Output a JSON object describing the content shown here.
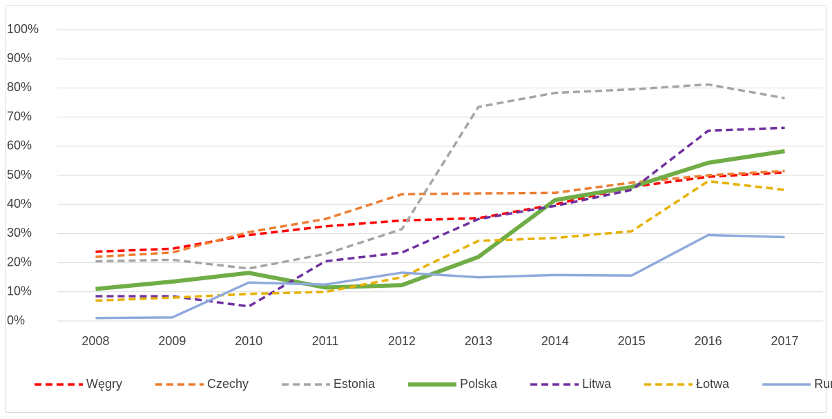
{
  "chart_data": {
    "type": "line",
    "categories": [
      "2008",
      "2009",
      "2010",
      "2011",
      "2012",
      "2013",
      "2014",
      "2015",
      "2016",
      "2017"
    ],
    "series": [
      {
        "name": "Węgry",
        "color": "#ff0000",
        "dashed": true,
        "values": [
          23.8,
          24.8,
          29.5,
          32.5,
          34.5,
          35.3,
          40,
          46,
          49.5,
          51
        ]
      },
      {
        "name": "Czechy",
        "color": "#ed7d31",
        "dashed": true,
        "values": [
          22,
          23.5,
          30.5,
          35,
          43.5,
          43.8,
          44,
          47.5,
          50,
          51.5
        ]
      },
      {
        "name": "Estonia",
        "color": "#a5a5a5",
        "dashed": true,
        "values": [
          20.5,
          21,
          18,
          23,
          31.5,
          73.5,
          78.3,
          79.5,
          81.2,
          76.5
        ]
      },
      {
        "name": "Polska",
        "color": "#70ad47",
        "dashed": false,
        "thick": true,
        "values": [
          11,
          13.5,
          16.5,
          11.5,
          12.3,
          22,
          41.5,
          46,
          54.3,
          58.3
        ]
      },
      {
        "name": "Litwa",
        "color": "#7030a0",
        "dashed": true,
        "values": [
          8.5,
          8.5,
          5,
          20.5,
          23.5,
          35,
          39.5,
          45,
          65.3,
          66.3
        ]
      },
      {
        "name": "Łotwa",
        "color": "#e6b000",
        "dashed": true,
        "values": [
          7,
          8,
          9.3,
          10,
          15,
          27.5,
          28.5,
          30.8,
          48,
          45
        ]
      },
      {
        "name": "Rumunia",
        "color": "#8faadc",
        "dashed": false,
        "values": [
          1,
          1.2,
          13.2,
          12.5,
          16.6,
          15,
          15.8,
          15.6,
          29.5,
          28.8
        ]
      }
    ],
    "ylim": [
      0,
      100
    ],
    "yticks": [
      {
        "value": 0,
        "label": "0%"
      },
      {
        "value": 10,
        "label": "10%"
      },
      {
        "value": 20,
        "label": "20%"
      },
      {
        "value": 30,
        "label": "30%"
      },
      {
        "value": 40,
        "label": "40%"
      },
      {
        "value": 50,
        "label": "50%"
      },
      {
        "value": 60,
        "label": "60%"
      },
      {
        "value": 70,
        "label": "70%"
      },
      {
        "value": 80,
        "label": "80%"
      },
      {
        "value": 90,
        "label": "90%"
      },
      {
        "value": 100,
        "label": "100%"
      }
    ],
    "grid": true,
    "legend": "bottom"
  }
}
